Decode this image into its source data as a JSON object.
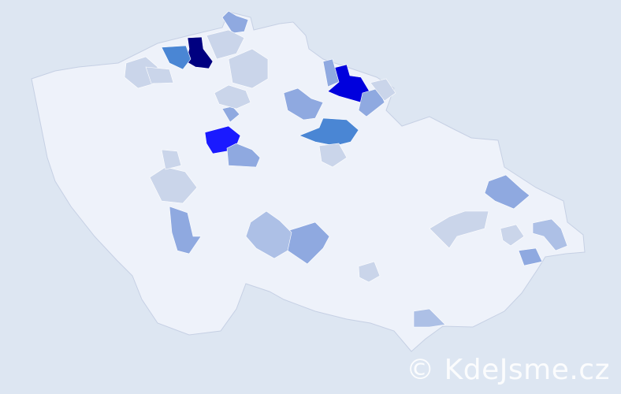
{
  "watermark": "© KdeJsme.cz",
  "colors": {
    "background": "#dde6f2",
    "country_base": "#eef2fa",
    "border": "#c6d0e4",
    "level_1": "#cad5ea",
    "level_2": "#adc0e6",
    "level_3": "#8fa9e0",
    "level_4": "#4a86d4",
    "level_5": "#1a1aff",
    "level_6": "#0000dd",
    "level_7": "#000080"
  }
}
